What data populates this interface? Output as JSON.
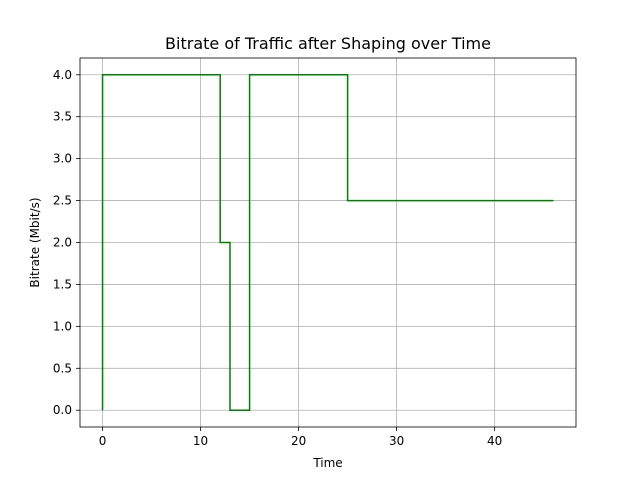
{
  "chart_data": {
    "type": "line",
    "step": "post",
    "title": "Bitrate of Traffic after Shaping over Time",
    "xlabel": "Time",
    "ylabel": "Bitrate (Mbit/s)",
    "xlim": [
      -2.3,
      48.3
    ],
    "ylim": [
      -0.2,
      4.2
    ],
    "grid": true,
    "xticks": [
      0,
      10,
      20,
      30,
      40
    ],
    "xtick_labels": [
      "0",
      "10",
      "20",
      "30",
      "40"
    ],
    "yticks": [
      0.0,
      0.5,
      1.0,
      1.5,
      2.0,
      2.5,
      3.0,
      3.5,
      4.0
    ],
    "ytick_labels": [
      "0.0",
      "0.5",
      "1.0",
      "1.5",
      "2.0",
      "2.5",
      "3.0",
      "3.5",
      "4.0"
    ],
    "series": [
      {
        "color": "#008000",
        "x": [
          0,
          0,
          12,
          13,
          15,
          25,
          46
        ],
        "y": [
          0,
          4,
          2,
          0,
          4,
          2.5,
          2.5
        ]
      }
    ]
  }
}
